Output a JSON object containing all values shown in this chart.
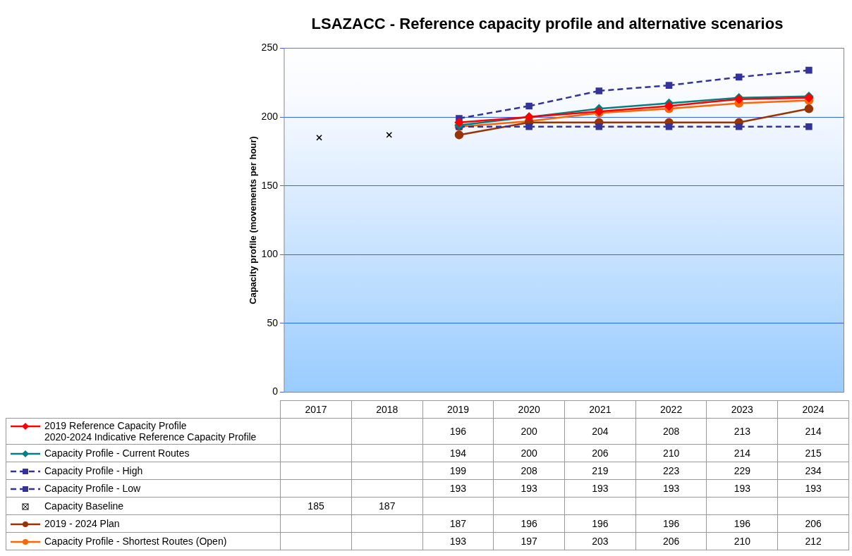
{
  "chart_data": {
    "type": "line",
    "title": "LSAZACC - Reference capacity profile and alternative scenarios",
    "ylabel": "Capacity profile (movements per hour)",
    "categories": [
      "2017",
      "2018",
      "2019",
      "2020",
      "2021",
      "2022",
      "2023",
      "2024"
    ],
    "series": [
      {
        "name": "2019  Reference Capacity Profile\n2020-2024 Indicative Reference Capacity Profile",
        "color": "#ff0000",
        "marker": "diamond",
        "line_style": "solid",
        "values": [
          null,
          null,
          196,
          200,
          204,
          208,
          213,
          214
        ]
      },
      {
        "name": "Capacity Profile - Current Routes",
        "color": "#008080",
        "marker": "diamond",
        "line_style": "solid",
        "values": [
          null,
          null,
          194,
          200,
          206,
          210,
          214,
          215
        ]
      },
      {
        "name": "Capacity Profile - High",
        "color": "#333399",
        "marker": "square",
        "line_style": "dashed",
        "values": [
          null,
          null,
          199,
          208,
          219,
          223,
          229,
          234
        ]
      },
      {
        "name": "Capacity Profile - Low",
        "color": "#333399",
        "marker": "square",
        "line_style": "dashed",
        "values": [
          null,
          null,
          193,
          193,
          193,
          193,
          193,
          193
        ]
      },
      {
        "name": "Capacity Baseline",
        "type": "scatter",
        "color": "#000000",
        "marker": "cross",
        "values": [
          185,
          187,
          null,
          null,
          null,
          null,
          null,
          null
        ]
      },
      {
        "name": "2019 - 2024 Plan",
        "color": "#993300",
        "marker": "circle",
        "line_style": "solid",
        "values": [
          null,
          null,
          187,
          196,
          196,
          196,
          196,
          206
        ]
      },
      {
        "name": "Capacity Profile - Shortest Routes (Open)",
        "color": "#ff6600",
        "marker": "circle",
        "line_style": "solid",
        "values": [
          null,
          null,
          193,
          197,
          203,
          206,
          210,
          212
        ]
      }
    ],
    "ylim": [
      0,
      250
    ],
    "yticks": [
      0,
      50,
      100,
      150,
      200,
      250
    ],
    "grid": "y",
    "legend": "bottom",
    "data_labels": true
  }
}
